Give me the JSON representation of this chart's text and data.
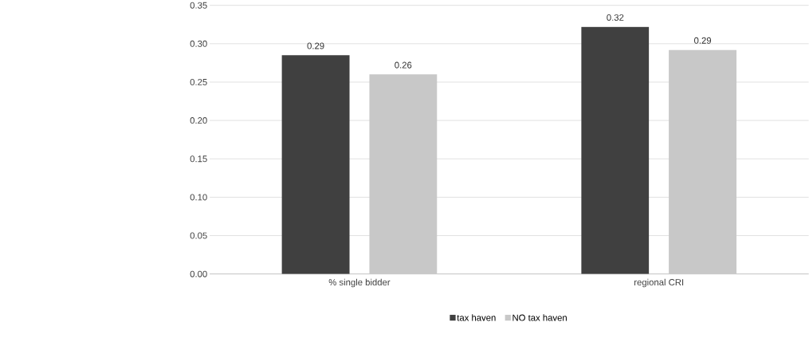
{
  "chart_data": {
    "type": "bar",
    "categories": [
      "% single bidder",
      "regional CRI"
    ],
    "series": [
      {
        "name": "tax haven",
        "color": "#404040",
        "values": [
          0.285,
          0.322
        ],
        "value_labels": [
          "0.29",
          "0.32"
        ]
      },
      {
        "name": "NO tax haven",
        "color": "#c8c8c8",
        "values": [
          0.26,
          0.292
        ],
        "value_labels": [
          "0.26",
          "0.29"
        ]
      }
    ],
    "ylim": [
      0,
      0.35
    ],
    "yticks": [
      {
        "value": 0,
        "label": "0.00"
      },
      {
        "value": 0.05,
        "label": "0.05"
      },
      {
        "value": 0.1,
        "label": "0.10"
      },
      {
        "value": 0.15,
        "label": "0.15"
      },
      {
        "value": 0.2,
        "label": "0.20"
      },
      {
        "value": 0.25,
        "label": "0.25"
      },
      {
        "value": 0.3,
        "label": "0.30"
      },
      {
        "value": 0.35,
        "label": "0.35"
      }
    ],
    "grid": "y",
    "legend": "bottom"
  }
}
